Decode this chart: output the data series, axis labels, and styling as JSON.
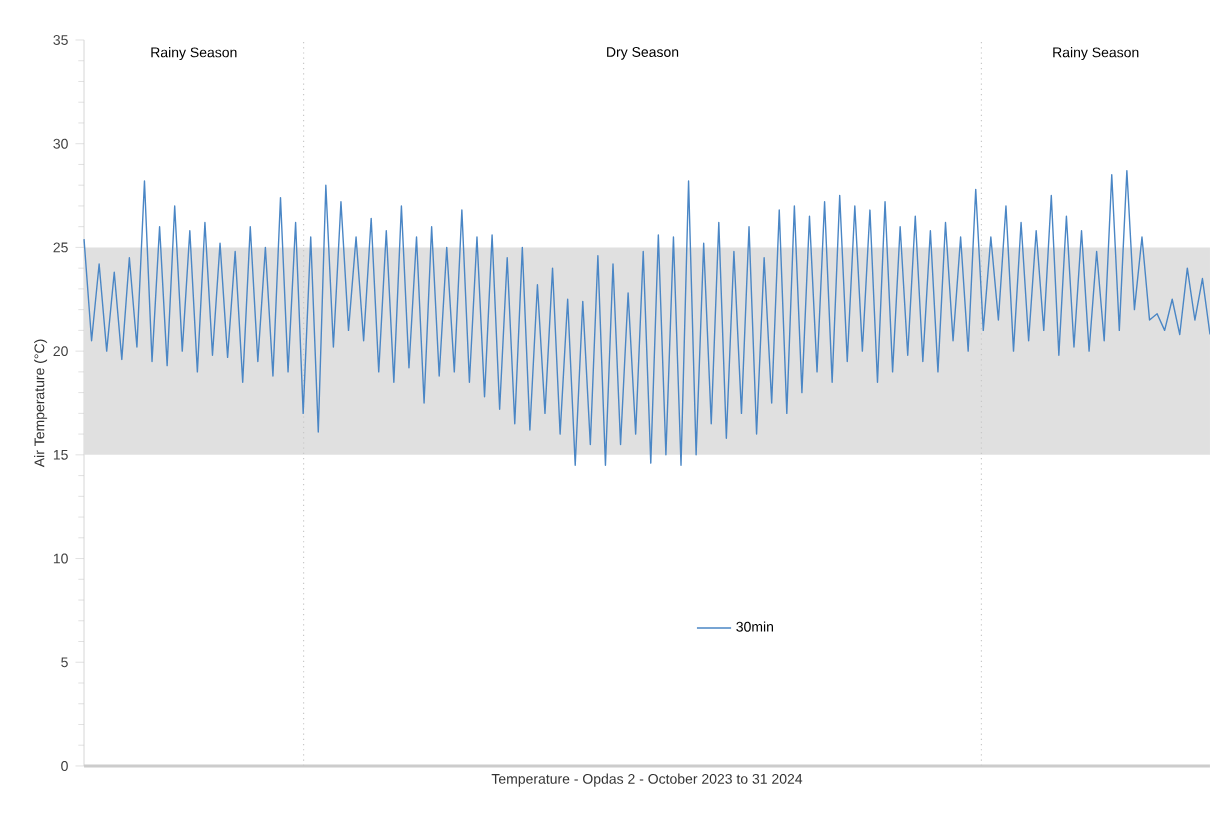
{
  "chart_data": {
    "type": "line",
    "xlabel": "Temperature - Opdas 2 - October 2023 to 31 2024",
    "ylabel": "Air Temperature (°C)",
    "categories": [
      null,
      null,
      null,
      null,
      null,
      null,
      null,
      null,
      null,
      null,
      null,
      null,
      null,
      null,
      null,
      null,
      null,
      null,
      null,
      null,
      null,
      null,
      null,
      null,
      null,
      null,
      null,
      null,
      null,
      null,
      null,
      null,
      null,
      null,
      null,
      null,
      null,
      null,
      null,
      null,
      null,
      null,
      null,
      null,
      null,
      null,
      null,
      null,
      null,
      null,
      null,
      null,
      null,
      null,
      null,
      null,
      null,
      null,
      null,
      null,
      null,
      null,
      null,
      null,
      null,
      null,
      null,
      null,
      null,
      null,
      null,
      null,
      null,
      null,
      null,
      null,
      null,
      null,
      null,
      null,
      null,
      null,
      null,
      null,
      null,
      null,
      null,
      null,
      null,
      null,
      null,
      null,
      null,
      null,
      null,
      null,
      null,
      null,
      null,
      null,
      null,
      null,
      null,
      null,
      null,
      null,
      null,
      null,
      null,
      null,
      null,
      null,
      null,
      null,
      null,
      null,
      null,
      null,
      null,
      null,
      null,
      null,
      null,
      null,
      null,
      null,
      null,
      null,
      null,
      null,
      null,
      null,
      null,
      null,
      null,
      null,
      null,
      null,
      null,
      null,
      null,
      null,
      null,
      null,
      null,
      null,
      null,
      null,
      null,
      null
    ],
    "series": [
      {
        "name": "30min",
        "color": "#4a86c5",
        "values": [
          25.4,
          20.5,
          24.2,
          20.0,
          23.8,
          19.6,
          24.5,
          20.2,
          28.2,
          19.5,
          26.0,
          19.3,
          27.0,
          20.0,
          25.8,
          19.0,
          26.2,
          19.8,
          25.2,
          19.7,
          24.8,
          18.5,
          26.0,
          19.5,
          25.0,
          18.8,
          27.4,
          19.0,
          26.2,
          17.0,
          25.5,
          16.1,
          28.0,
          20.2,
          27.2,
          21.0,
          25.5,
          20.5,
          26.4,
          19.0,
          25.8,
          18.5,
          27.0,
          19.2,
          25.5,
          17.5,
          26.0,
          18.8,
          25.0,
          19.0,
          26.8,
          18.5,
          25.5,
          17.8,
          25.6,
          17.2,
          24.5,
          16.5,
          25.0,
          16.2,
          23.2,
          17.0,
          24.0,
          16.0,
          22.5,
          14.5,
          22.4,
          15.5,
          24.6,
          14.5,
          24.2,
          15.5,
          22.8,
          16.0,
          24.8,
          14.6,
          25.6,
          15.0,
          25.5,
          14.5,
          28.2,
          15.0,
          25.2,
          16.5,
          26.2,
          15.8,
          24.8,
          17.0,
          26.0,
          16.0,
          24.5,
          17.5,
          26.8,
          17.0,
          27.0,
          18.0,
          26.5,
          19.0,
          27.2,
          18.5,
          27.5,
          19.5,
          27.0,
          20.0,
          26.8,
          18.5,
          27.2,
          19.0,
          26.0,
          19.8,
          26.5,
          19.5,
          25.8,
          19.0,
          26.2,
          20.5,
          25.5,
          20.0,
          27.8,
          21.0,
          25.5,
          21.5,
          27.0,
          20.0,
          26.2,
          20.5,
          25.8,
          21.0,
          27.5,
          19.8,
          26.5,
          20.2,
          25.8,
          20.0,
          24.8,
          20.5,
          28.5,
          21.0,
          28.7,
          22.0,
          25.5,
          21.5,
          21.8,
          21.0,
          22.5,
          20.8,
          24.0,
          21.5,
          23.5,
          20.8
        ]
      }
    ],
    "ylim": [
      0,
      35
    ],
    "yticks": [
      0,
      5,
      10,
      15,
      20,
      25,
      30,
      35
    ],
    "tick_labels": "y",
    "bands": [
      {
        "axis": "y",
        "from": 15,
        "to": 25,
        "color": "#e0e0e0"
      }
    ],
    "annotations": [
      "Rainy Season",
      "Dry Season",
      "Rainy Season"
    ],
    "legend": "bottom",
    "marker": "none",
    "line_style": "solid",
    "grid": false
  }
}
